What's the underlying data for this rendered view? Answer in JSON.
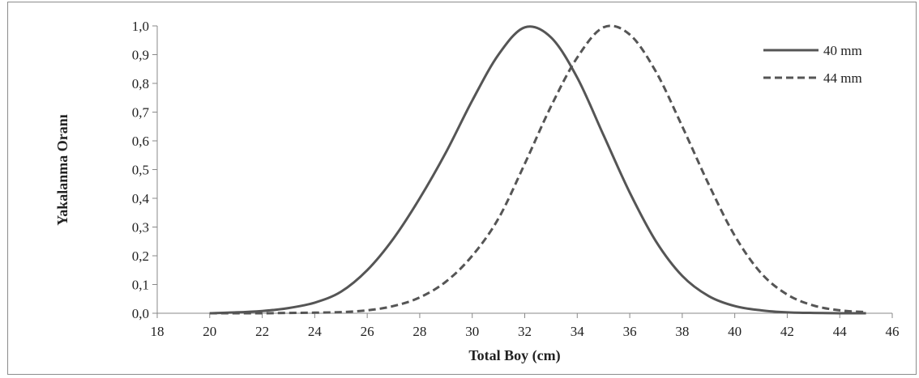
{
  "chart_data": {
    "type": "line",
    "xlabel": "Total Boy (cm)",
    "ylabel": "Yakalanma Oranı",
    "xlim": [
      18,
      46
    ],
    "ylim": [
      0,
      1
    ],
    "x_ticks": [
      "18",
      "20",
      "22",
      "24",
      "26",
      "28",
      "30",
      "32",
      "34",
      "36",
      "38",
      "40",
      "42",
      "44",
      "46"
    ],
    "y_ticks": [
      "0,0",
      "0,1",
      "0,2",
      "0,3",
      "0,4",
      "0,5",
      "0,6",
      "0,7",
      "0,8",
      "0,9",
      "1,0"
    ],
    "grid": false,
    "legend_position": "top-right",
    "x": [
      20,
      21,
      22,
      23,
      24,
      25,
      26,
      27,
      28,
      29,
      30,
      31,
      32,
      33,
      34,
      35,
      36,
      37,
      38,
      39,
      40,
      41,
      42,
      43,
      44,
      45
    ],
    "series": [
      {
        "name": "40 mm",
        "style": "solid",
        "color": "#555555",
        "values": [
          0.0,
          0.003,
          0.008,
          0.018,
          0.037,
          0.075,
          0.15,
          0.26,
          0.4,
          0.56,
          0.74,
          0.9,
          0.995,
          0.96,
          0.82,
          0.62,
          0.42,
          0.25,
          0.13,
          0.06,
          0.025,
          0.01,
          0.003,
          0.001,
          0.0,
          0.0
        ]
      },
      {
        "name": "44 mm",
        "style": "dashed",
        "color": "#555555",
        "values": [
          0.0,
          0.0,
          0.0,
          0.001,
          0.002,
          0.004,
          0.01,
          0.025,
          0.055,
          0.11,
          0.2,
          0.33,
          0.52,
          0.72,
          0.89,
          0.995,
          0.97,
          0.84,
          0.65,
          0.45,
          0.27,
          0.14,
          0.065,
          0.027,
          0.01,
          0.004
        ]
      }
    ]
  }
}
